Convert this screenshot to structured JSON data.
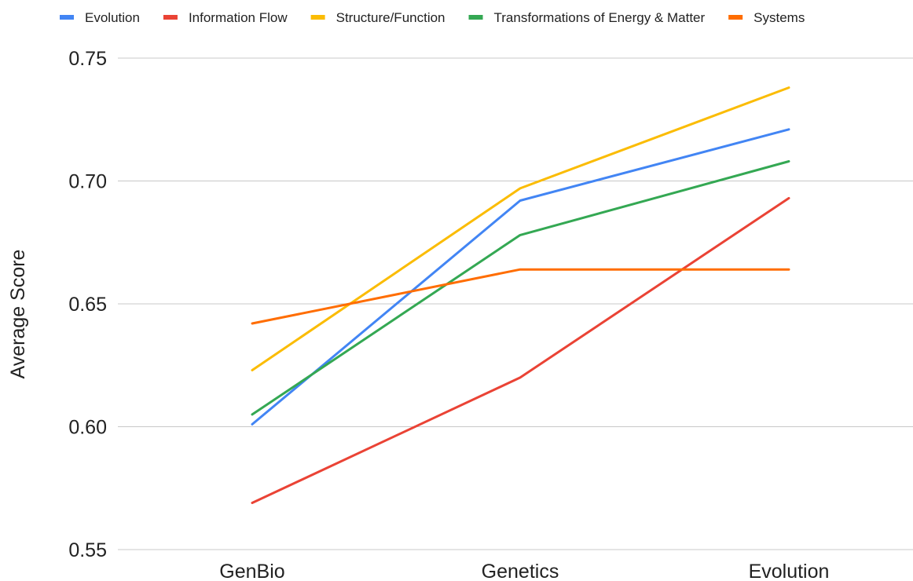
{
  "chart_data": {
    "type": "line",
    "title": "",
    "xlabel": "",
    "ylabel": "Average Score",
    "categories": [
      "GenBio",
      "Genetics",
      "Evolution"
    ],
    "ylim": [
      0.55,
      0.75
    ],
    "yticks": [
      "0.55",
      "0.60",
      "0.65",
      "0.70",
      "0.75"
    ],
    "grid": true,
    "legend_position": "top",
    "series": [
      {
        "name": "Evolution",
        "color": "#4285f4",
        "values": [
          0.601,
          0.692,
          0.721
        ]
      },
      {
        "name": "Information Flow",
        "color": "#ea4335",
        "values": [
          0.569,
          0.62,
          0.693
        ]
      },
      {
        "name": "Structure/Function",
        "color": "#fbbc04",
        "values": [
          0.623,
          0.697,
          0.738
        ]
      },
      {
        "name": "Transformations of Energy & Matter",
        "color": "#34a853",
        "values": [
          0.605,
          0.678,
          0.708
        ]
      },
      {
        "name": "Systems",
        "color": "#ff6d01",
        "values": [
          0.642,
          0.664,
          0.664
        ]
      }
    ]
  }
}
